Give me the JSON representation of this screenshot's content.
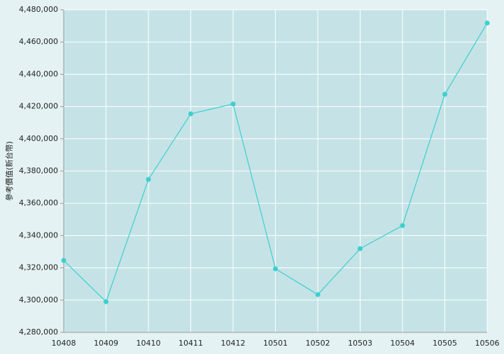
{
  "chart_data": {
    "type": "line",
    "y_label": "參考價值(新台幣)",
    "categories": [
      "10408",
      "10409",
      "10410",
      "10411",
      "10412",
      "10501",
      "10502",
      "10503",
      "10504",
      "10505",
      "10506"
    ],
    "series": [
      {
        "color": "#3ccfcf",
        "values": [
          4324600,
          4299000,
          4374800,
          4415500,
          4421600,
          4319400,
          4303400,
          4331900,
          4346200,
          4427600,
          4471800
        ]
      }
    ],
    "ylim": [
      4280000,
      4480000
    ],
    "yticks": [
      {
        "value": 4280000,
        "label": "4,280,000"
      },
      {
        "value": 4300000,
        "label": "4,300,000"
      },
      {
        "value": 4320000,
        "label": "4,320,000"
      },
      {
        "value": 4340000,
        "label": "4,340,000"
      },
      {
        "value": 4360000,
        "label": "4,360,000"
      },
      {
        "value": 4380000,
        "label": "4,380,000"
      },
      {
        "value": 4400000,
        "label": "4,400,000"
      },
      {
        "value": 4420000,
        "label": "4,420,000"
      },
      {
        "value": 4440000,
        "label": "4,440,000"
      },
      {
        "value": 4460000,
        "label": "4,460,000"
      },
      {
        "value": 4480000,
        "label": "4,480,000"
      }
    ],
    "grid": true
  }
}
